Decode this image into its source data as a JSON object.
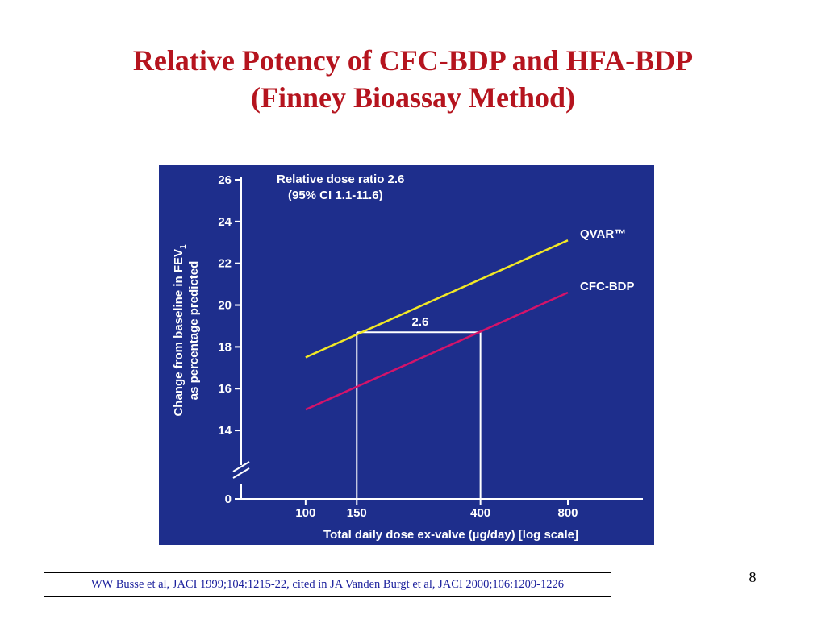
{
  "slide": {
    "title_line1": "Relative Potency of CFC-BDP and HFA-BDP",
    "title_line2": "(Finney Bioassay Method)",
    "page_number": "8",
    "citation": "WW Busse et al, JACI 1999;104:1215-22, cited in JA Vanden Burgt et al, JACI 2000;106:1209-1226"
  },
  "chart_data": {
    "type": "line",
    "background": "#1e2e8c",
    "annotation_line1": "Relative dose ratio 2.6",
    "annotation_line2": "(95% CI 1.1-11.6)",
    "ylabel_line1": "Change from baseline in FEV",
    "ylabel_subscript": "1",
    "ylabel_line2": "as percentage predicted",
    "xlabel": "Total daily dose ex-valve (µg/day) [log scale]",
    "x_scale": "log",
    "x_ticks": [
      100,
      150,
      400,
      800
    ],
    "x_tick_labels": [
      "100",
      "150",
      "400",
      "800"
    ],
    "xlim": [
      60,
      1450
    ],
    "y_ticks": [
      0,
      14,
      16,
      18,
      20,
      22,
      24,
      26
    ],
    "y_tick_labels": [
      "0",
      "14",
      "16",
      "18",
      "20",
      "22",
      "24",
      "26"
    ],
    "y_axis_break": [
      0,
      14
    ],
    "ylim": [
      13,
      26
    ],
    "series": [
      {
        "name": "QVAR™",
        "color": "#f2e826",
        "x": [
          100,
          800
        ],
        "y": [
          17.5,
          23.1
        ]
      },
      {
        "name": "CFC-BDP",
        "color": "#d4136a",
        "x": [
          100,
          800
        ],
        "y": [
          15.0,
          20.6
        ]
      }
    ],
    "ratio_box": {
      "label": "2.6",
      "x_start": 150,
      "x_end": 400,
      "y_level": 18.7,
      "color": "#ffffff"
    }
  }
}
